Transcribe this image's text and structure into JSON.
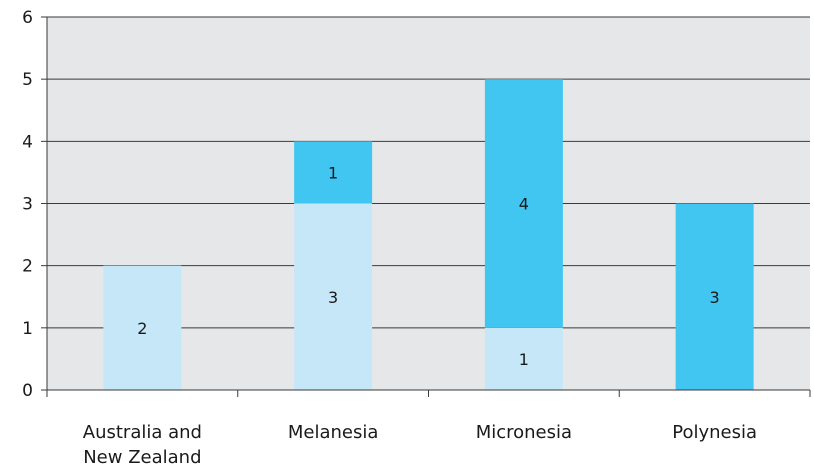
{
  "chart_data": {
    "type": "bar",
    "stacked": true,
    "categories": [
      "Australia and New Zealand",
      "Melanesia",
      "Micronesia",
      "Polynesia"
    ],
    "category_lines": [
      [
        "Australia and",
        "New Zealand"
      ],
      [
        "Melanesia"
      ],
      [
        "Micronesia"
      ],
      [
        "Polynesia"
      ]
    ],
    "series": [
      {
        "values": [
          2,
          3,
          1,
          0
        ],
        "color": "#c5e7f7"
      },
      {
        "values": [
          0,
          1,
          4,
          3
        ],
        "color": "#40c6f1"
      }
    ],
    "ylim": [
      0,
      6
    ],
    "yticks": [
      0,
      1,
      2,
      3,
      4,
      5,
      6
    ],
    "grid": true,
    "plot_background": "#e6e7e8",
    "title": "",
    "xlabel": "",
    "ylabel": ""
  }
}
